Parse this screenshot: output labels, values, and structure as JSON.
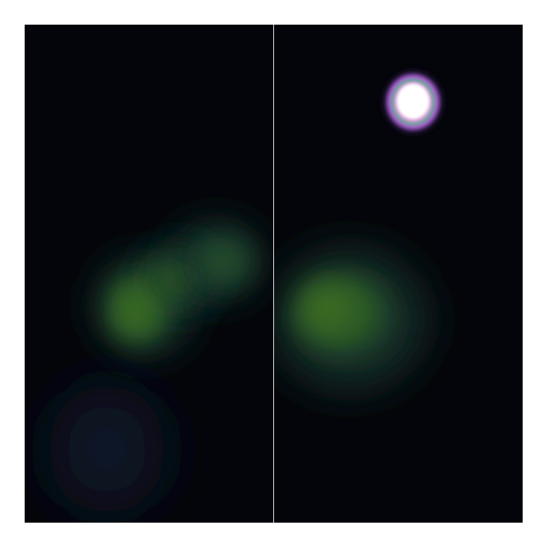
{
  "image": {
    "kind": "false-color astronomical image pair",
    "panels": [
      {
        "id": "left",
        "sources": [
          "diffuse-green-arc",
          "faint-blue-haze"
        ]
      },
      {
        "id": "right",
        "sources": [
          "bright-compact-source",
          "diffuse-green-blob"
        ]
      }
    ],
    "colors": {
      "background": "#04050a",
      "green_emission": "#3f7a2e",
      "teal_halo": "#1d4a45",
      "blue_haze": "#101830",
      "hot_core": "#ffffff",
      "ring_purple": "#b06ad0",
      "ring_green": "#60c080",
      "divider": "#ffffff"
    }
  }
}
